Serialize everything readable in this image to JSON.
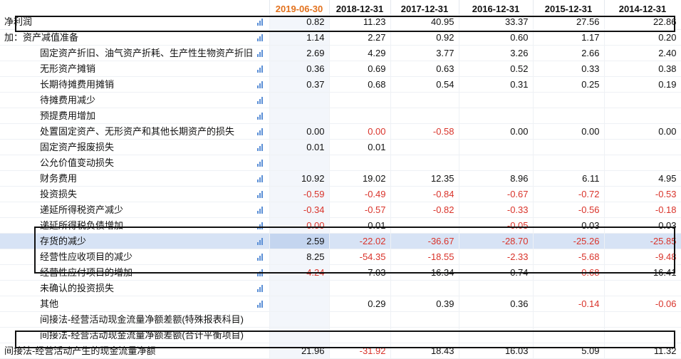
{
  "columns": [
    "2019-06-30",
    "2018-12-31",
    "2017-12-31",
    "2016-12-31",
    "2015-12-31",
    "2014-12-31"
  ],
  "selected_column": 0,
  "icons": {
    "row_chart": "bar-chart-icon"
  },
  "colors": {
    "negative": "#d9332a",
    "selected_header": "#e2711d",
    "highlight_row": "#d7e3f5"
  },
  "rows": [
    {
      "label": "净利润",
      "level": 0,
      "values": [
        "0.82",
        "11.23",
        "40.95",
        "33.37",
        "27.56",
        "22.86"
      ]
    },
    {
      "label": "加：资产减值准备",
      "level": 0,
      "values": [
        "1.14",
        "2.27",
        "0.92",
        "0.60",
        "1.17",
        "0.20"
      ]
    },
    {
      "label": "固定资产折旧、油气资产折耗、生产性生物资产折旧",
      "level": 1,
      "values": [
        "2.69",
        "4.29",
        "3.77",
        "3.26",
        "2.66",
        "2.40"
      ]
    },
    {
      "label": "无形资产摊销",
      "level": 1,
      "values": [
        "0.36",
        "0.69",
        "0.63",
        "0.52",
        "0.33",
        "0.38"
      ]
    },
    {
      "label": "长期待摊费用摊销",
      "level": 1,
      "values": [
        "0.37",
        "0.68",
        "0.54",
        "0.31",
        "0.25",
        "0.19"
      ]
    },
    {
      "label": "待摊费用减少",
      "level": 1,
      "values": [
        "",
        "",
        "",
        "",
        "",
        ""
      ]
    },
    {
      "label": "预提费用增加",
      "level": 1,
      "values": [
        "",
        "",
        "",
        "",
        "",
        ""
      ]
    },
    {
      "label": "处置固定资产、无形资产和其他长期资产的损失",
      "level": 1,
      "values": [
        "0.00",
        "0.00",
        "-0.58",
        "0.00",
        "0.00",
        "0.00"
      ],
      "red": [
        false,
        true,
        true,
        false,
        false,
        false
      ]
    },
    {
      "label": "固定资产报废损失",
      "level": 1,
      "values": [
        "0.01",
        "0.01",
        "",
        "",
        "",
        ""
      ]
    },
    {
      "label": "公允价值变动损失",
      "level": 1,
      "values": [
        "",
        "",
        "",
        "",
        "",
        ""
      ]
    },
    {
      "label": "财务费用",
      "level": 1,
      "values": [
        "10.92",
        "19.02",
        "12.35",
        "8.96",
        "6.11",
        "4.95"
      ]
    },
    {
      "label": "投资损失",
      "level": 1,
      "values": [
        "-0.59",
        "-0.49",
        "-0.84",
        "-0.67",
        "-0.72",
        "-0.53"
      ]
    },
    {
      "label": "递延所得税资产减少",
      "level": 1,
      "values": [
        "-0.34",
        "-0.57",
        "-0.82",
        "-0.33",
        "-0.56",
        "-0.18"
      ]
    },
    {
      "label": "递延所得税负债增加",
      "level": 1,
      "values": [
        "0.00",
        "0.01",
        "",
        "-0.05",
        "0.03",
        "0.03"
      ],
      "red": [
        true,
        false,
        false,
        true,
        false,
        false
      ]
    },
    {
      "label": "存货的减少",
      "level": 1,
      "highlight": true,
      "values": [
        "2.59",
        "-22.02",
        "-36.67",
        "-28.70",
        "-25.26",
        "-25.85"
      ]
    },
    {
      "label": "经营性应收项目的减少",
      "level": 1,
      "values": [
        "8.25",
        "-54.35",
        "-18.55",
        "-2.33",
        "-5.68",
        "-9.48"
      ]
    },
    {
      "label": "经营性应付项目的增加",
      "level": 1,
      "values": [
        "-4.24",
        "7.03",
        "16.34",
        "0.74",
        "-0.68",
        "16.41"
      ]
    },
    {
      "label": "未确认的投资损失",
      "level": 1,
      "values": [
        "",
        "",
        "",
        "",
        "",
        ""
      ]
    },
    {
      "label": "其他",
      "level": 1,
      "values": [
        "",
        "0.29",
        "0.39",
        "0.36",
        "-0.14",
        "-0.06"
      ]
    },
    {
      "label": "间接法-经营活动现金流量净额差额(特殊报表科目)",
      "level": 1,
      "noicon": true,
      "values": [
        "",
        "",
        "",
        "",
        "",
        ""
      ]
    },
    {
      "label": "间接法-经营活动现金流量净额差额(合计平衡项目)",
      "level": 1,
      "noicon": true,
      "values": [
        "",
        "",
        "",
        "",
        "",
        ""
      ]
    },
    {
      "label": "间接法-经营活动产生的现金流量净额",
      "level": 0,
      "noicon": true,
      "values": [
        "21.96",
        "-31.92",
        "18.43",
        "16.03",
        "5.09",
        "11.32"
      ]
    }
  ]
}
